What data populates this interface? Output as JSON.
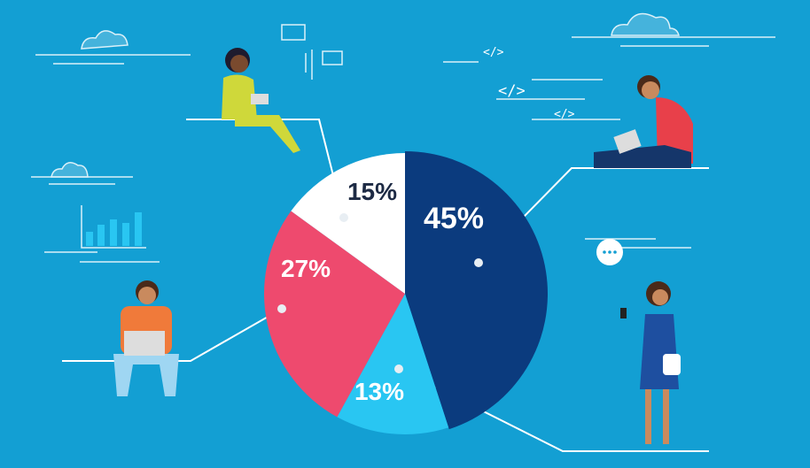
{
  "chart_data": {
    "type": "pie",
    "slices": [
      {
        "label": "45%",
        "value": 45,
        "color": "#0b3b7e",
        "text_color": "#ffffff"
      },
      {
        "label": "13%",
        "value": 13,
        "color": "#29c6f2",
        "text_color": "#ffffff"
      },
      {
        "label": "27%",
        "value": 27,
        "color": "#ee4a6e",
        "text_color": "#ffffff"
      },
      {
        "label": "15%",
        "value": 15,
        "color": "#ffffff",
        "text_color": "#1d2a44"
      }
    ],
    "start": "top",
    "direction": "clockwise"
  },
  "colors": {
    "background": "#139fd3",
    "lines": "#ffffff"
  },
  "icons": [
    "cloud-icon",
    "envelope-icon",
    "code-tag-icon",
    "bar-chart-icon",
    "speech-bubble-icon",
    "laptop-icon",
    "tablet-icon",
    "smartphone-icon"
  ]
}
